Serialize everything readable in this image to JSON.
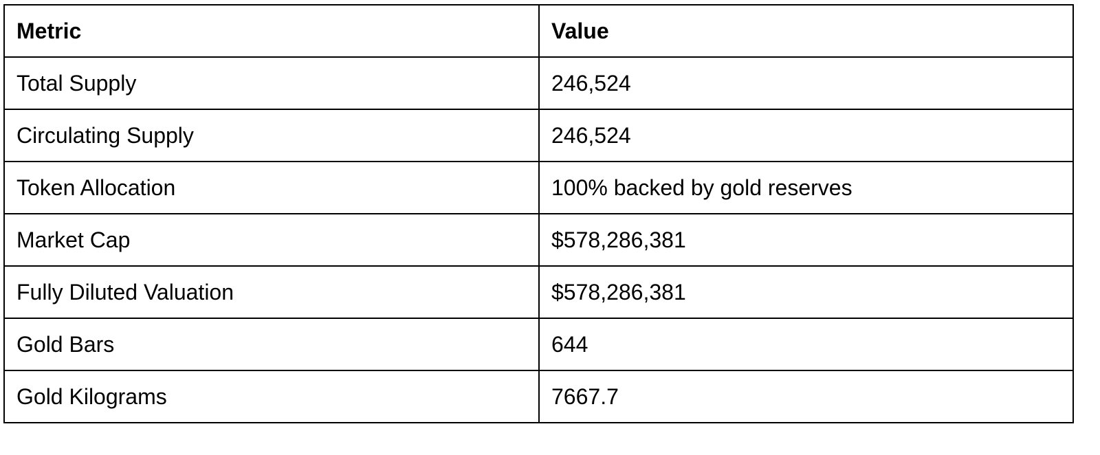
{
  "table": {
    "header": [
      "Metric",
      "Value"
    ],
    "rows": [
      [
        "Total Supply",
        "246,524"
      ],
      [
        "Circulating Supply",
        "246,524"
      ],
      [
        "Token Allocation",
        "100% backed by gold reserves"
      ],
      [
        "Market Cap",
        "$578,286,381"
      ],
      [
        "Fully Diluted Valuation",
        "$578,286,381"
      ],
      [
        "Gold Bars",
        "644"
      ],
      [
        "Gold Kilograms",
        "7667.7"
      ]
    ]
  }
}
